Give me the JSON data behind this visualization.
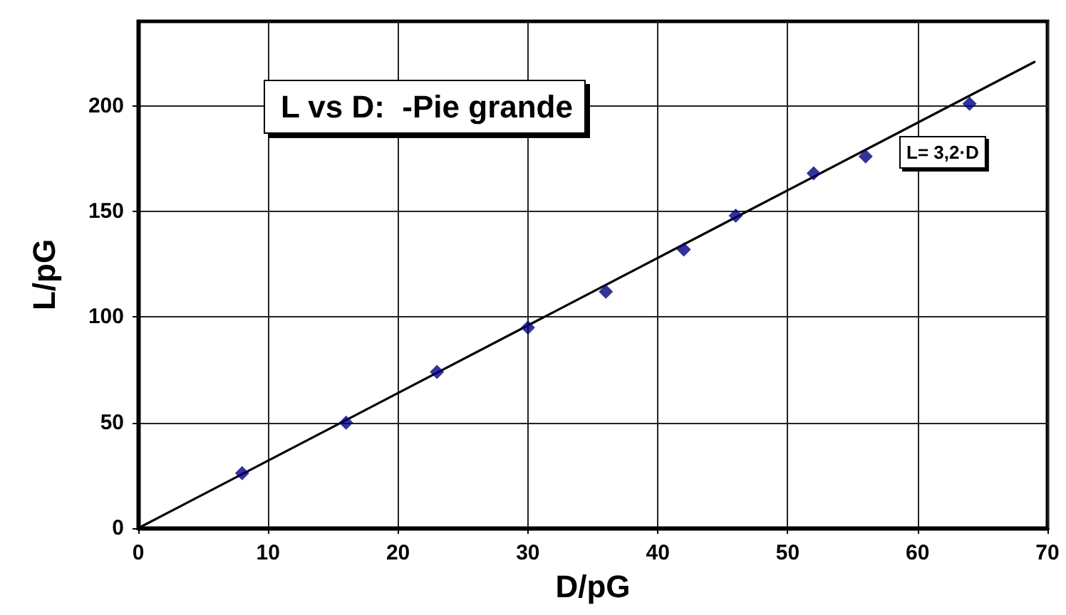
{
  "chart_data": {
    "type": "scatter",
    "title": "L vs D:  -Pie grande",
    "xlabel": "D/pG",
    "ylabel": "L/pG",
    "series": [
      {
        "color": "#000080",
        "marker": "diamond",
        "x": [
          8,
          16,
          23,
          30,
          36,
          42,
          46,
          52,
          56,
          64
        ],
        "values": [
          26,
          50,
          74,
          95,
          112,
          132,
          148,
          168,
          176,
          201
        ]
      },
      {
        "type": "line",
        "color": "#000000",
        "marker": "none",
        "line_style": "solid",
        "x": [
          0,
          69
        ],
        "values": [
          0,
          220.8
        ]
      }
    ],
    "annotations": [
      "L= 3,2·D"
    ],
    "xlim": [
      0,
      70
    ],
    "xticks": [
      0,
      10,
      20,
      30,
      40,
      50,
      60,
      70
    ],
    "ylim": [
      0,
      240
    ],
    "yticks": [
      0,
      50,
      100,
      150,
      200
    ],
    "grid": true
  }
}
